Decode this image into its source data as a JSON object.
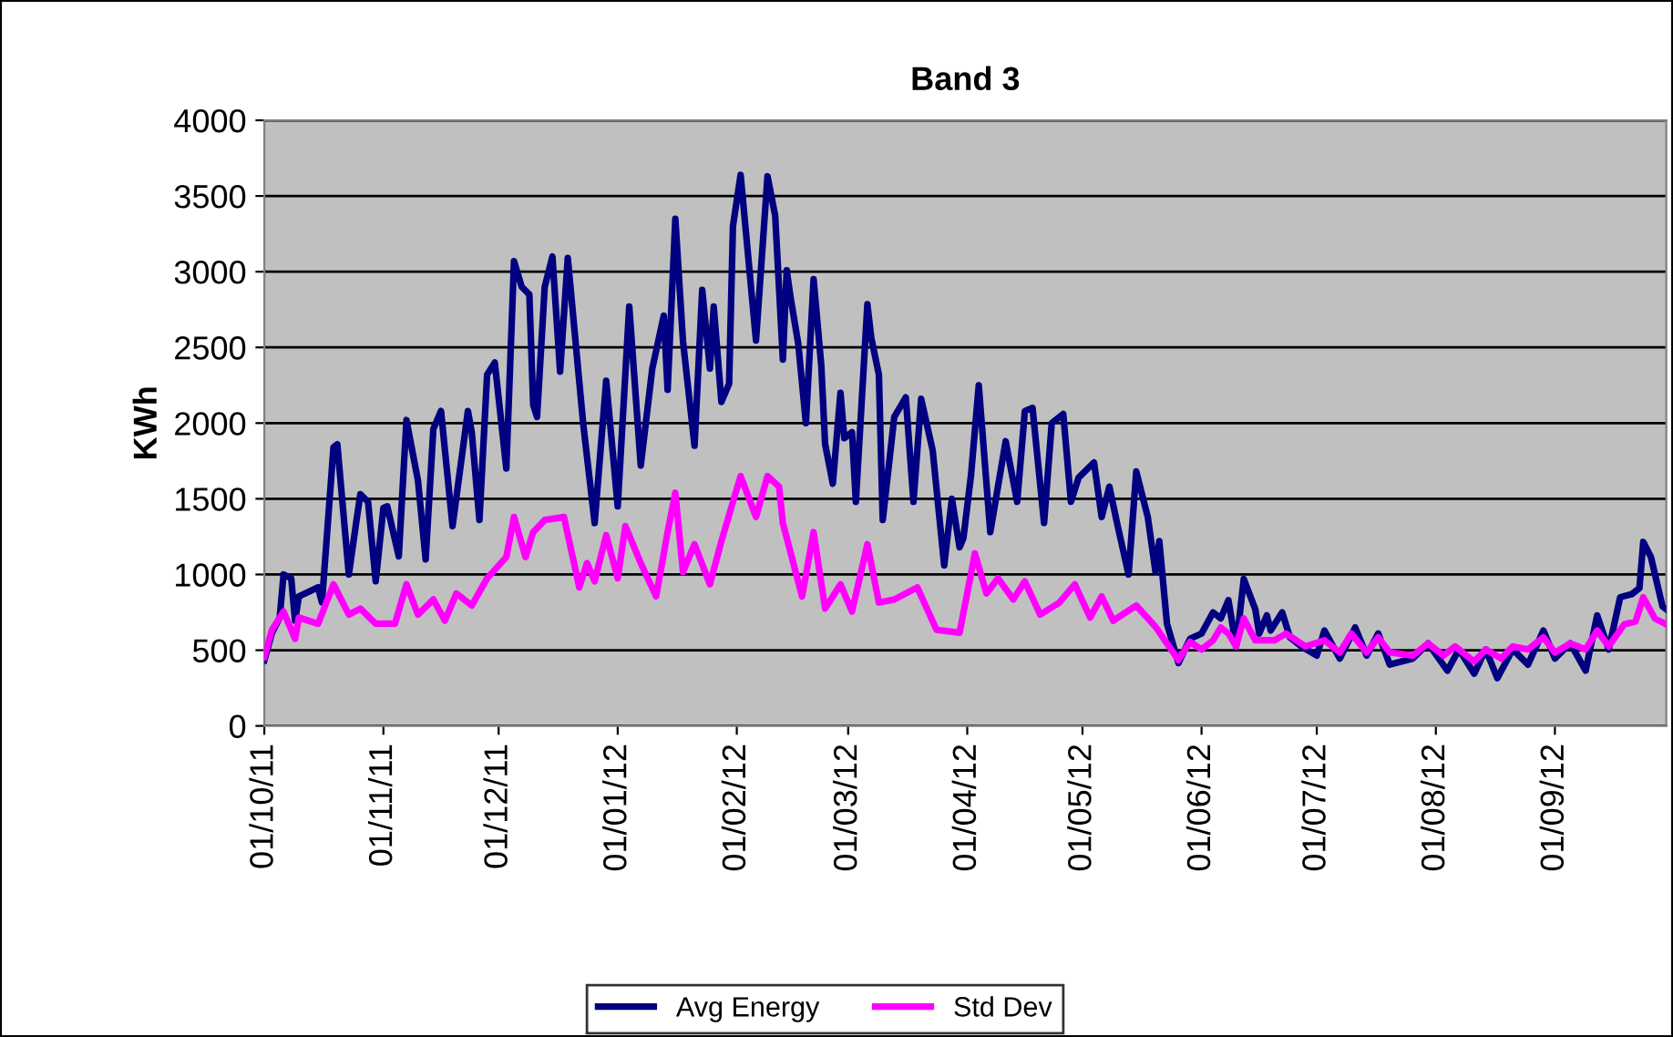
{
  "chart_data": {
    "type": "line",
    "title": "Band 3",
    "ylabel": "KWh",
    "grid": "y",
    "legend": "bottom",
    "marker": "none",
    "line_style": "solid",
    "xlim": [
      "2011-10-01",
      "2012-09-30"
    ],
    "ylim": [
      0,
      4000
    ],
    "yticks": [
      0,
      500,
      1000,
      1500,
      2000,
      2500,
      3000,
      3500,
      4000
    ],
    "xticks": [
      {
        "value": "2011-10-01",
        "label": "01/10/11"
      },
      {
        "value": "2011-11-01",
        "label": "01/11/11"
      },
      {
        "value": "2011-12-01",
        "label": "01/12/11"
      },
      {
        "value": "2012-01-01",
        "label": "01/01/12"
      },
      {
        "value": "2012-02-01",
        "label": "01/02/12"
      },
      {
        "value": "2012-03-01",
        "label": "01/03/12"
      },
      {
        "value": "2012-04-01",
        "label": "01/04/12"
      },
      {
        "value": "2012-05-01",
        "label": "01/05/12"
      },
      {
        "value": "2012-06-01",
        "label": "01/06/12"
      },
      {
        "value": "2012-07-01",
        "label": "01/07/12"
      },
      {
        "value": "2012-08-01",
        "label": "01/08/12"
      },
      {
        "value": "2012-09-01",
        "label": "01/09/12"
      }
    ],
    "series": [
      {
        "name": "Avg Energy",
        "color": "#000080",
        "x": [
          "2011-10-01",
          "2011-10-03",
          "2011-10-05",
          "2011-10-06",
          "2011-10-08",
          "2011-10-09",
          "2011-10-10",
          "2011-10-15",
          "2011-10-16",
          "2011-10-19",
          "2011-10-20",
          "2011-10-23",
          "2011-10-25",
          "2011-10-26",
          "2011-10-28",
          "2011-10-30",
          "2011-11-01",
          "2011-11-02",
          "2011-11-05",
          "2011-11-07",
          "2011-11-10",
          "2011-11-12",
          "2011-11-14",
          "2011-11-16",
          "2011-11-19",
          "2011-11-23",
          "2011-11-24",
          "2011-11-26",
          "2011-11-28",
          "2011-11-30",
          "2011-12-03",
          "2011-12-05",
          "2011-12-07",
          "2011-12-09",
          "2011-12-10",
          "2011-12-11",
          "2011-12-13",
          "2011-12-15",
          "2011-12-17",
          "2011-12-19",
          "2011-12-23",
          "2011-12-26",
          "2011-12-29",
          "2012-01-01",
          "2012-01-04",
          "2012-01-07",
          "2012-01-10",
          "2012-01-13",
          "2012-01-14",
          "2012-01-16",
          "2012-01-18",
          "2012-01-21",
          "2012-01-23",
          "2012-01-25",
          "2012-01-26",
          "2012-01-28",
          "2012-01-30",
          "2012-01-31",
          "2012-02-02",
          "2012-02-06",
          "2012-02-09",
          "2012-02-11",
          "2012-02-13",
          "2012-02-14",
          "2012-02-15",
          "2012-02-17",
          "2012-02-19",
          "2012-02-21",
          "2012-02-23",
          "2012-02-24",
          "2012-02-26",
          "2012-02-28",
          "2012-02-29",
          "2012-03-02",
          "2012-03-03",
          "2012-03-06",
          "2012-03-07",
          "2012-03-09",
          "2012-03-10",
          "2012-03-13",
          "2012-03-16",
          "2012-03-18",
          "2012-03-20",
          "2012-03-23",
          "2012-03-26",
          "2012-03-28",
          "2012-03-30",
          "2012-03-31",
          "2012-04-02",
          "2012-04-04",
          "2012-04-07",
          "2012-04-11",
          "2012-04-14",
          "2012-04-16",
          "2012-04-18",
          "2012-04-21",
          "2012-04-23",
          "2012-04-26",
          "2012-04-28",
          "2012-04-30",
          "2012-05-04",
          "2012-05-06",
          "2012-05-08",
          "2012-05-10",
          "2012-05-13",
          "2012-05-15",
          "2012-05-18",
          "2012-05-20",
          "2012-05-21",
          "2012-05-23",
          "2012-05-26",
          "2012-05-29",
          "2012-06-01",
          "2012-06-04",
          "2012-06-06",
          "2012-06-08",
          "2012-06-10",
          "2012-06-12",
          "2012-06-15",
          "2012-06-16",
          "2012-06-18",
          "2012-06-19",
          "2012-06-22",
          "2012-06-24",
          "2012-06-27",
          "2012-07-01",
          "2012-07-03",
          "2012-07-07",
          "2012-07-11",
          "2012-07-14",
          "2012-07-17",
          "2012-07-20",
          "2012-07-26",
          "2012-07-30",
          "2012-08-04",
          "2012-08-07",
          "2012-08-11",
          "2012-08-14",
          "2012-08-17",
          "2012-08-21",
          "2012-08-25",
          "2012-08-29",
          "2012-09-01",
          "2012-09-05",
          "2012-09-09",
          "2012-09-12",
          "2012-09-15",
          "2012-09-18",
          "2012-09-21",
          "2012-09-23",
          "2012-09-24",
          "2012-09-26",
          "2012-09-29",
          "2012-09-30"
        ],
        "values": [
          434,
          615,
          715,
          1000,
          975,
          695,
          855,
          915,
          815,
          1840,
          1860,
          1000,
          1360,
          1530,
          1480,
          955,
          1440,
          1450,
          1120,
          2020,
          1620,
          1100,
          1960,
          2080,
          1320,
          2080,
          1940,
          1360,
          2320,
          2400,
          1700,
          3070,
          2900,
          2850,
          2120,
          2040,
          2900,
          3100,
          2340,
          3090,
          2000,
          1340,
          2280,
          1450,
          2770,
          1720,
          2360,
          2710,
          2220,
          3350,
          2540,
          1850,
          2880,
          2360,
          2770,
          2140,
          2260,
          3300,
          3640,
          2545,
          3630,
          3370,
          2420,
          3010,
          2830,
          2525,
          2000,
          2950,
          2380,
          1860,
          1600,
          2200,
          1900,
          1940,
          1480,
          2785,
          2565,
          2320,
          1360,
          2040,
          2170,
          1480,
          2160,
          1820,
          1060,
          1500,
          1180,
          1240,
          1660,
          2250,
          1280,
          1880,
          1480,
          2080,
          2100,
          1340,
          2000,
          2060,
          1480,
          1640,
          1740,
          1380,
          1580,
          1340,
          1000,
          1680,
          1380,
          1020,
          1220,
          675,
          415,
          575,
          610,
          750,
          710,
          830,
          525,
          970,
          770,
          610,
          730,
          630,
          750,
          585,
          525,
          465,
          630,
          445,
          650,
          465,
          610,
          405,
          445,
          545,
          365,
          505,
          345,
          505,
          315,
          505,
          405,
          630,
          445,
          545,
          365,
          730,
          505,
          850,
          870,
          910,
          1215,
          1115,
          790,
          770
        ]
      },
      {
        "name": "Std Dev",
        "color": "#ff00ff",
        "x": [
          "2011-10-01",
          "2011-10-03",
          "2011-10-06",
          "2011-10-09",
          "2011-10-10",
          "2011-10-15",
          "2011-10-19",
          "2011-10-23",
          "2011-10-26",
          "2011-10-30",
          "2011-11-04",
          "2011-11-07",
          "2011-11-10",
          "2011-11-14",
          "2011-11-17",
          "2011-11-20",
          "2011-11-24",
          "2011-11-28",
          "2011-12-03",
          "2011-12-05",
          "2011-12-08",
          "2011-12-10",
          "2011-12-13",
          "2011-12-18",
          "2011-12-22",
          "2011-12-24",
          "2011-12-26",
          "2011-12-29",
          "2012-01-01",
          "2012-01-03",
          "2012-01-07",
          "2012-01-11",
          "2012-01-14",
          "2012-01-16",
          "2012-01-18",
          "2012-01-21",
          "2012-01-25",
          "2012-01-28",
          "2012-01-31",
          "2012-02-02",
          "2012-02-06",
          "2012-02-09",
          "2012-02-12",
          "2012-02-13",
          "2012-02-18",
          "2012-02-21",
          "2012-02-24",
          "2012-02-28",
          "2012-03-02",
          "2012-03-06",
          "2012-03-09",
          "2012-03-13",
          "2012-03-19",
          "2012-03-24",
          "2012-03-30",
          "2012-04-03",
          "2012-04-06",
          "2012-04-09",
          "2012-04-13",
          "2012-04-16",
          "2012-04-20",
          "2012-04-25",
          "2012-04-29",
          "2012-05-03",
          "2012-05-06",
          "2012-05-09",
          "2012-05-15",
          "2012-05-20",
          "2012-05-26",
          "2012-05-29",
          "2012-06-01",
          "2012-06-04",
          "2012-06-06",
          "2012-06-08",
          "2012-06-10",
          "2012-06-12",
          "2012-06-15",
          "2012-06-20",
          "2012-06-23",
          "2012-06-28",
          "2012-07-03",
          "2012-07-07",
          "2012-07-10",
          "2012-07-14",
          "2012-07-17",
          "2012-07-20",
          "2012-07-26",
          "2012-07-30",
          "2012-08-03",
          "2012-08-06",
          "2012-08-11",
          "2012-08-14",
          "2012-08-18",
          "2012-08-21",
          "2012-08-25",
          "2012-08-29",
          "2012-09-01",
          "2012-09-05",
          "2012-09-09",
          "2012-09-12",
          "2012-09-15",
          "2012-09-19",
          "2012-09-22",
          "2012-09-24",
          "2012-09-27",
          "2012-09-30"
        ],
        "values": [
          455,
          635,
          755,
          575,
          715,
          675,
          935,
          735,
          775,
          675,
          675,
          935,
          735,
          835,
          695,
          875,
          795,
          975,
          1115,
          1380,
          1115,
          1280,
          1360,
          1380,
          915,
          1075,
          955,
          1260,
          975,
          1320,
          1075,
          855,
          1280,
          1540,
          1015,
          1200,
          935,
          1220,
          1480,
          1650,
          1380,
          1650,
          1580,
          1340,
          855,
          1280,
          775,
          935,
          755,
          1200,
          815,
          835,
          915,
          635,
          615,
          1140,
          875,
          975,
          835,
          955,
          735,
          815,
          935,
          715,
          855,
          695,
          795,
          655,
          435,
          555,
          505,
          565,
          650,
          610,
          525,
          710,
          565,
          565,
          610,
          525,
          565,
          485,
          610,
          485,
          585,
          485,
          465,
          545,
          465,
          525,
          425,
          505,
          445,
          525,
          505,
          585,
          485,
          545,
          505,
          630,
          525,
          670,
          690,
          850,
          710,
          670
        ]
      }
    ]
  }
}
